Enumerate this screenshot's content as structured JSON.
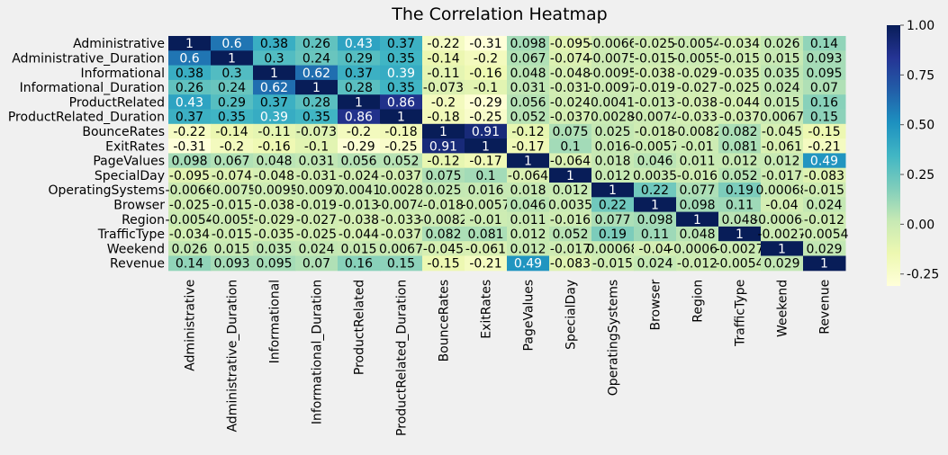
{
  "chart_data": {
    "type": "heatmap",
    "title": "The Correlation Heatmap",
    "variables": [
      "Administrative",
      "Administrative_Duration",
      "Informational",
      "Informational_Duration",
      "ProductRelated",
      "ProductRelated_Duration",
      "BounceRates",
      "ExitRates",
      "PageValues",
      "SpecialDay",
      "OperatingSystems",
      "Browser",
      "Region",
      "TrafficType",
      "Weekend",
      "Revenue"
    ],
    "values": [
      [
        "1",
        "0.6",
        "0.38",
        "0.26",
        "0.43",
        "0.37",
        "-0.22",
        "-0.31",
        "0.098",
        "-0.095",
        "-0.0066",
        "-0.025",
        "-0.0054",
        "-0.034",
        "0.026",
        "0.14"
      ],
      [
        "0.6",
        "1",
        "0.3",
        "0.24",
        "0.29",
        "0.35",
        "-0.14",
        "-0.2",
        "0.067",
        "-0.074",
        "-0.0075",
        "-0.015",
        "-0.0055",
        "-0.015",
        "0.015",
        "0.093"
      ],
      [
        "0.38",
        "0.3",
        "1",
        "0.62",
        "0.37",
        "0.39",
        "-0.11",
        "-0.16",
        "0.048",
        "-0.048",
        "-0.0095",
        "-0.038",
        "-0.029",
        "-0.035",
        "0.035",
        "0.095"
      ],
      [
        "0.26",
        "0.24",
        "0.62",
        "1",
        "0.28",
        "0.35",
        "-0.073",
        "-0.1",
        "0.031",
        "-0.031",
        "-0.0097",
        "-0.019",
        "-0.027",
        "-0.025",
        "0.024",
        "0.07"
      ],
      [
        "0.43",
        "0.29",
        "0.37",
        "0.28",
        "1",
        "0.86",
        "-0.2",
        "-0.29",
        "0.056",
        "-0.024",
        "0.0041",
        "-0.013",
        "-0.038",
        "-0.044",
        "0.015",
        "0.16"
      ],
      [
        "0.37",
        "0.35",
        "0.39",
        "0.35",
        "0.86",
        "1",
        "-0.18",
        "-0.25",
        "0.052",
        "-0.037",
        "0.0028",
        "-0.0074",
        "-0.033",
        "-0.037",
        "0.0067",
        "0.15"
      ],
      [
        "-0.22",
        "-0.14",
        "-0.11",
        "-0.073",
        "-0.2",
        "-0.18",
        "1",
        "0.91",
        "-0.12",
        "0.075",
        "0.025",
        "-0.018",
        "-0.0082",
        "0.082",
        "-0.045",
        "-0.15"
      ],
      [
        "-0.31",
        "-0.2",
        "-0.16",
        "-0.1",
        "-0.29",
        "-0.25",
        "0.91",
        "1",
        "-0.17",
        "0.1",
        "0.016",
        "-0.0057",
        "-0.01",
        "0.081",
        "-0.061",
        "-0.21"
      ],
      [
        "0.098",
        "0.067",
        "0.048",
        "0.031",
        "0.056",
        "0.052",
        "-0.12",
        "-0.17",
        "1",
        "-0.064",
        "0.018",
        "0.046",
        "0.011",
        "0.012",
        "0.012",
        "0.49"
      ],
      [
        "-0.095",
        "-0.074",
        "-0.048",
        "-0.031",
        "-0.024",
        "-0.037",
        "0.075",
        "0.1",
        "-0.064",
        "1",
        "0.012",
        "0.0035",
        "-0.016",
        "0.052",
        "-0.017",
        "-0.083"
      ],
      [
        "-0.0066",
        "-0.0075",
        "-0.0095",
        "-0.0097",
        "0.0041",
        "0.0028",
        "0.025",
        "0.016",
        "0.018",
        "0.012",
        "1",
        "0.22",
        "0.077",
        "0.19",
        "0.00068",
        "-0.015"
      ],
      [
        "-0.025",
        "-0.015",
        "-0.038",
        "-0.019",
        "-0.013",
        "-0.0074",
        "-0.018",
        "-0.0057",
        "0.046",
        "0.0035",
        "0.22",
        "1",
        "0.098",
        "0.11",
        "-0.04",
        "0.024"
      ],
      [
        "-0.0054",
        "-0.0055",
        "-0.029",
        "-0.027",
        "-0.038",
        "-0.033",
        "-0.0082",
        "-0.01",
        "0.011",
        "-0.016",
        "0.077",
        "0.098",
        "1",
        "0.048",
        "-0.00064",
        "-0.012"
      ],
      [
        "-0.034",
        "-0.015",
        "-0.035",
        "-0.025",
        "-0.044",
        "-0.037",
        "0.082",
        "0.081",
        "0.012",
        "0.052",
        "0.19",
        "0.11",
        "0.048",
        "1",
        "-0.0027",
        "-0.0054"
      ],
      [
        "0.026",
        "0.015",
        "0.035",
        "0.024",
        "0.015",
        "0.0067",
        "-0.045",
        "-0.061",
        "0.012",
        "-0.017",
        "0.00068",
        "-0.04",
        "-0.00064",
        "-0.0027",
        "1",
        "0.029"
      ],
      [
        "0.14",
        "0.093",
        "0.095",
        "0.07",
        "0.16",
        "0.15",
        "-0.15",
        "-0.21",
        "0.49",
        "-0.083",
        "-0.015",
        "0.024",
        "-0.012",
        "-0.0054",
        "0.029",
        "1"
      ]
    ],
    "colormap": "YlGnBu",
    "colorbar": {
      "range": [
        -0.31,
        1.0
      ],
      "ticks": [
        "1.00",
        "0.75",
        "0.50",
        "0.25",
        "0.00",
        "-0.25"
      ],
      "tick_values": [
        1.0,
        0.75,
        0.5,
        0.25,
        0.0,
        -0.25
      ]
    },
    "grid": false
  }
}
